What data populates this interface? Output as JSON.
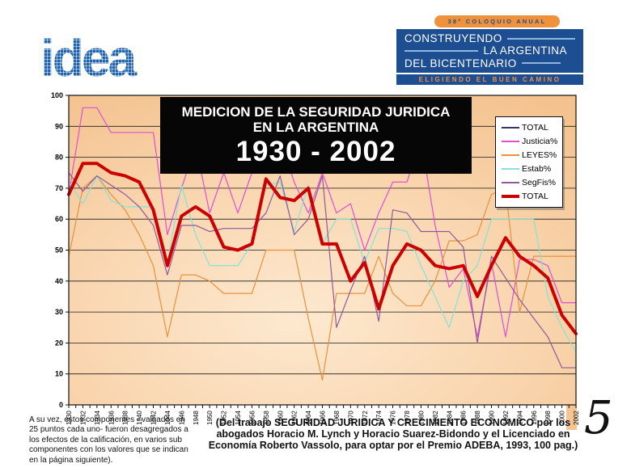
{
  "logo": {
    "text": "idea",
    "color": "#1E63AC"
  },
  "banner": {
    "pill_text": "38° COLOQUIO ANUAL",
    "line1": "CONSTRUYENDO",
    "line2": "LA ARGENTINA",
    "line3": "DEL BICENTENARIO",
    "tagline": "ELIGIENDO EL BUEN CAMINO",
    "bg_color": "#1D4E91",
    "accent_color": "#F0923B"
  },
  "chart": {
    "title_line1": "MEDICION DE LA SEGURIDAD JURIDICA",
    "title_line2": "EN LA ARGENTINA",
    "title_line3": "1930 - 2002"
  },
  "chart_data": {
    "type": "line",
    "title": "MEDICION DE LA SEGURIDAD JURIDICA EN LA ARGENTINA 1930 - 2002",
    "xlabel": "",
    "ylabel": "",
    "ylim": [
      0,
      100
    ],
    "y_ticks": [
      0,
      10,
      20,
      30,
      40,
      50,
      60,
      70,
      80,
      90,
      100
    ],
    "grid": "horizontal",
    "legend_position": "top-right",
    "plot_bg_colors": [
      "#FDE9D0",
      "#F9D5AE",
      "#F4C28E"
    ],
    "x": [
      1930,
      1932,
      1934,
      1936,
      1938,
      1940,
      1942,
      1944,
      1946,
      1948,
      1950,
      1952,
      1954,
      1956,
      1958,
      1960,
      1962,
      1964,
      1966,
      1968,
      1970,
      1972,
      1974,
      1976,
      1978,
      1980,
      1982,
      1984,
      1986,
      1988,
      1990,
      1992,
      1994,
      1996,
      1998,
      2000,
      2002
    ],
    "series": [
      {
        "label": "TOTAL",
        "color": "#333366",
        "width": 1,
        "values": [
          68,
          78,
          78,
          75,
          74,
          72,
          63,
          45,
          61,
          64,
          61,
          51,
          50,
          52,
          73,
          67,
          66,
          70,
          52,
          52,
          40,
          46,
          31,
          45,
          52,
          50,
          45,
          44,
          45,
          35,
          45,
          54,
          48,
          45,
          41,
          29,
          23
        ]
      },
      {
        "label": "Justicia%",
        "color": "#E04FD2",
        "width": 1.2,
        "values": [
          68,
          96,
          96,
          88,
          88,
          88,
          88,
          55,
          70,
          84,
          62,
          75,
          62,
          75,
          88,
          86,
          72,
          62,
          75,
          62,
          65,
          50,
          62,
          72,
          72,
          86,
          58,
          38,
          44,
          22,
          46,
          22,
          47,
          47,
          45,
          33,
          33
        ]
      },
      {
        "label": "LEYES%",
        "color": "#E8913F",
        "width": 1.2,
        "values": [
          48,
          70,
          74,
          68,
          63,
          55,
          45,
          22,
          42,
          42,
          40,
          36,
          36,
          36,
          50,
          50,
          50,
          28,
          8,
          36,
          36,
          36,
          48,
          36,
          32,
          32,
          40,
          53,
          53,
          55,
          68,
          70,
          30,
          48,
          48,
          48,
          48
        ]
      },
      {
        "label": "Estab%",
        "color": "#85E2D8",
        "width": 1.2,
        "values": [
          72,
          65,
          74,
          66,
          64,
          64,
          64,
          46,
          71,
          55,
          45,
          45,
          45,
          52,
          71,
          72,
          56,
          71,
          52,
          60,
          60,
          46,
          57,
          57,
          56,
          45,
          35,
          25,
          40,
          45,
          60,
          60,
          60,
          60,
          35,
          25,
          17
        ]
      },
      {
        "label": "SegFis%",
        "color": "#91589B",
        "width": 1.2,
        "values": [
          75,
          69,
          74,
          71,
          68,
          64,
          58,
          42,
          58,
          58,
          56,
          57,
          57,
          57,
          62,
          74,
          55,
          60,
          74,
          25,
          37,
          48,
          27,
          63,
          62,
          56,
          56,
          56,
          51,
          20,
          48,
          41,
          34,
          28,
          22,
          12,
          12
        ]
      },
      {
        "label": "TOTAL",
        "color": "#CC0000",
        "width": 4,
        "values": [
          68,
          78,
          78,
          75,
          74,
          72,
          63,
          45,
          61,
          64,
          61,
          51,
          50,
          52,
          73,
          67,
          66,
          70,
          52,
          52,
          40,
          46,
          31,
          45,
          52,
          50,
          45,
          44,
          45,
          35,
          45,
          54,
          48,
          45,
          41,
          29,
          23
        ]
      }
    ]
  },
  "footnotes": {
    "left": "A su vez, estos componentes - valuados en 25 puntos cada uno- fueron desagregados a los efectos de la calificación, en varios sub componentes con los valores que se indican en la página siguiente).",
    "source_line1": "(Del trabajo SEGURIDAD JURIDICA Y CRECIMIENTO ECONOMICO por los",
    "source_line2": "abogados Horacio M. Lynch y Horacio Suarez-Bidondo y el Licenciado en",
    "source_line3": "Economía Roberto Vassolo, para optar por el Premio ADEBA, 1993, 100 pag.)"
  },
  "page_number": "5"
}
